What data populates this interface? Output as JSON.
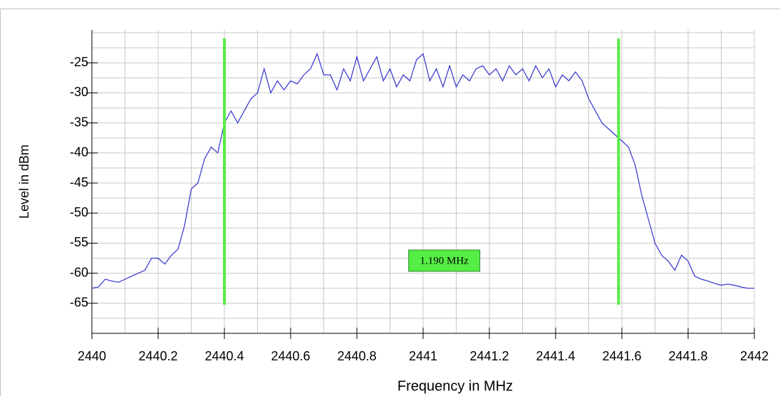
{
  "chart_data": {
    "type": "line",
    "x_label": "Frequency in MHz",
    "y_label": "Level in dBm",
    "x": [
      2440.0,
      2440.02,
      2440.04,
      2440.06,
      2440.08,
      2440.1,
      2440.12,
      2440.14,
      2440.16,
      2440.18,
      2440.2,
      2440.22,
      2440.24,
      2440.26,
      2440.28,
      2440.3,
      2440.32,
      2440.34,
      2440.36,
      2440.38,
      2440.4,
      2440.42,
      2440.44,
      2440.46,
      2440.48,
      2440.5,
      2440.52,
      2440.54,
      2440.56,
      2440.58,
      2440.6,
      2440.62,
      2440.64,
      2440.66,
      2440.68,
      2440.7,
      2440.72,
      2440.74,
      2440.76,
      2440.78,
      2440.8,
      2440.82,
      2440.84,
      2440.86,
      2440.88,
      2440.9,
      2440.92,
      2440.94,
      2440.96,
      2440.98,
      2441.0,
      2441.02,
      2441.04,
      2441.06,
      2441.08,
      2441.1,
      2441.12,
      2441.14,
      2441.16,
      2441.18,
      2441.2,
      2441.22,
      2441.24,
      2441.26,
      2441.28,
      2441.3,
      2441.32,
      2441.34,
      2441.36,
      2441.38,
      2441.4,
      2441.42,
      2441.44,
      2441.46,
      2441.48,
      2441.5,
      2441.52,
      2441.54,
      2441.56,
      2441.58,
      2441.6,
      2441.62,
      2441.64,
      2441.66,
      2441.68,
      2441.7,
      2441.72,
      2441.74,
      2441.76,
      2441.78,
      2441.8,
      2441.82,
      2441.84,
      2441.86,
      2441.88,
      2441.9,
      2441.92,
      2441.94,
      2441.96,
      2441.98,
      2442.0
    ],
    "series": [
      {
        "color": "#3333cc",
        "values": [
          -62.5,
          -62.3,
          -61,
          -61.3,
          -61.5,
          -61,
          -60.5,
          -60,
          -59.5,
          -57.5,
          -57.5,
          -58.5,
          -57,
          -56,
          -52,
          -46,
          -45,
          -41,
          -39,
          -40,
          -35,
          -33,
          -35,
          -33,
          -31,
          -30,
          -26,
          -30,
          -28,
          -29.5,
          -28,
          -28.5,
          -27,
          -26,
          -23.5,
          -27,
          -27,
          -29.5,
          -26,
          -28,
          -24,
          -28,
          -26,
          -24,
          -28,
          -26,
          -29,
          -27,
          -28,
          -24.5,
          -23.5,
          -28,
          -26,
          -29,
          -25.5,
          -29,
          -27,
          -28,
          -26,
          -25.5,
          -27,
          -26,
          -28,
          -25.5,
          -27,
          -26,
          -28,
          -25.5,
          -27.5,
          -26,
          -29,
          -27,
          -28,
          -26.5,
          -28,
          -31,
          -33,
          -35,
          -36,
          -37,
          -38,
          -39,
          -42,
          -47,
          -51,
          -55,
          -57,
          -58,
          -59.5,
          -57,
          -58,
          -60.5,
          -61,
          -61.3,
          -61.7,
          -62,
          -61.8,
          -62,
          -62.3,
          -62.5,
          -62.5
        ]
      }
    ],
    "markers": {
      "color": "#55ee44",
      "x": [
        2440.4,
        2441.59
      ]
    },
    "annotation": "1.190 MHz",
    "xlim": [
      2440,
      2442
    ],
    "xticks": [
      2440,
      2440.2,
      2440.4,
      2440.6,
      2440.8,
      2441,
      2441.2,
      2441.4,
      2441.6,
      2441.8,
      2442
    ],
    "ylim": [
      -70,
      -20
    ],
    "yticks": [
      -25,
      -30,
      -35,
      -40,
      -45,
      -50,
      -55,
      -60,
      -65
    ],
    "grid": true
  }
}
